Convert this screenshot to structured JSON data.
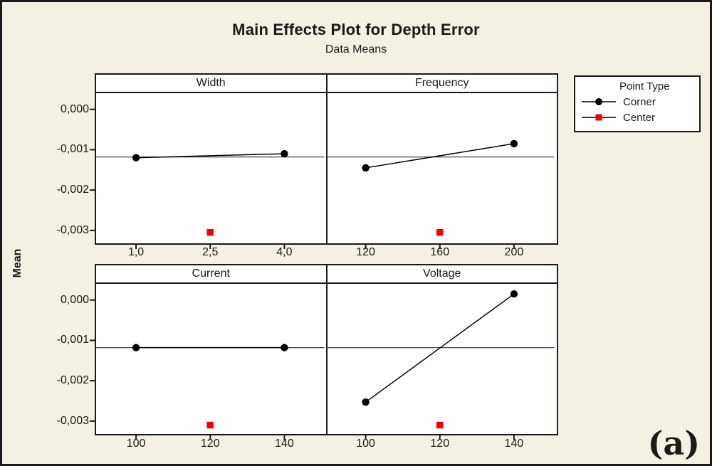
{
  "figure": {
    "panel_label": "(a)"
  },
  "chart_data": {
    "type": "line",
    "title": "Main Effects Plot for Depth Error",
    "subtitle": "Data Means",
    "ylabel": "Mean",
    "legend": {
      "title": "Point Type",
      "entries": [
        {
          "label": "Corner",
          "marker": "circle",
          "color": "#000000"
        },
        {
          "label": "Center",
          "marker": "square",
          "color": "#ee0000"
        }
      ],
      "position": "top-right"
    },
    "colors": {
      "corner": "#000000",
      "center": "#ee0000",
      "series_line": "#000000",
      "reference_line": "#444444",
      "background": "#f4f0e3",
      "panel_background": "#ffffff"
    },
    "grid": false,
    "ylim": [
      -0.00332,
      0.0004
    ],
    "y_ticks": [
      0.0,
      -0.001,
      -0.002,
      -0.003
    ],
    "y_tick_labels": [
      "0,000",
      "-0,001",
      "-0,002",
      "-0,003"
    ],
    "reference_line_value": -0.00118,
    "panels": [
      {
        "title": "Width",
        "x_tick_labels": [
          "1,0",
          "2,5",
          "4,0"
        ],
        "x_values": [
          1.0,
          2.5,
          4.0
        ],
        "corner_points": {
          "x": [
            1.0,
            4.0
          ],
          "y": [
            -0.0012,
            -0.0011
          ]
        },
        "center_point": {
          "x": 2.5,
          "y": -0.00305
        }
      },
      {
        "title": "Frequency",
        "x_tick_labels": [
          "120",
          "160",
          "200"
        ],
        "x_values": [
          120,
          160,
          200
        ],
        "corner_points": {
          "x": [
            120,
            200
          ],
          "y": [
            -0.00145,
            -0.00085
          ]
        },
        "center_point": {
          "x": 160,
          "y": -0.00305
        }
      },
      {
        "title": "Current",
        "x_tick_labels": [
          "100",
          "120",
          "140"
        ],
        "x_values": [
          100,
          120,
          140
        ],
        "corner_points": {
          "x": [
            100,
            140
          ],
          "y": [
            -0.00118,
            -0.00118
          ]
        },
        "center_point": {
          "x": 120,
          "y": -0.0031
        }
      },
      {
        "title": "Voltage",
        "x_tick_labels": [
          "100",
          "120",
          "140"
        ],
        "x_values": [
          100,
          120,
          140
        ],
        "corner_points": {
          "x": [
            100,
            140
          ],
          "y": [
            -0.00253,
            0.00015
          ]
        },
        "center_point": {
          "x": 120,
          "y": -0.0031
        }
      }
    ]
  }
}
